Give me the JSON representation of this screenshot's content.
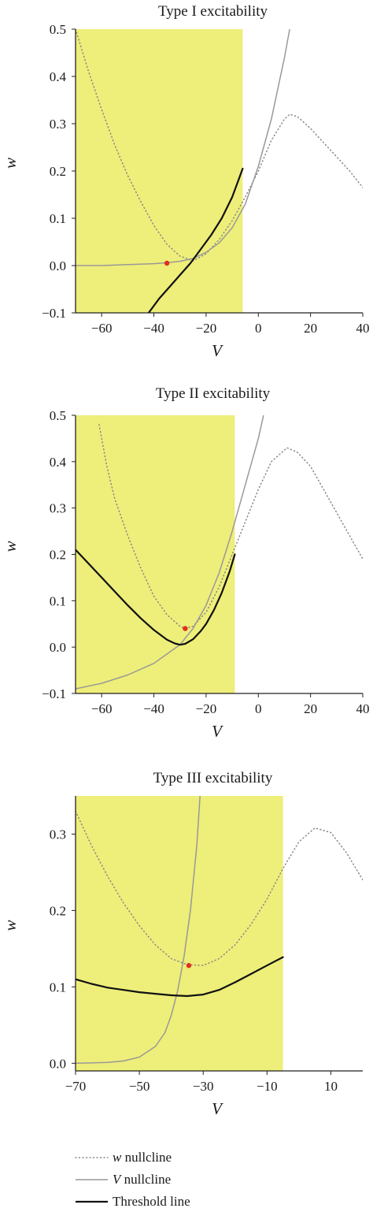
{
  "colors": {
    "fill": "#eeee7a",
    "w_nullcline": "#888888",
    "v_nullcline": "#999999",
    "threshold": "#111111",
    "fixed_point": "#e03020",
    "axis": "#222222"
  },
  "legend": {
    "position": "bottom-left",
    "items": [
      {
        "prefix": "w",
        "suffix": " nullcline",
        "style": "dotted",
        "color": "#888888"
      },
      {
        "prefix": "V",
        "suffix": " nullcline",
        "style": "solid-gray",
        "color": "#999999"
      },
      {
        "prefix": "",
        "suffix": "Threshold line",
        "style": "solid-black",
        "color": "#111111"
      }
    ]
  },
  "chart_data": [
    {
      "type": "line",
      "title": "Type I excitability",
      "xlabel": "V",
      "ylabel": "w",
      "xlim": [
        -70,
        40
      ],
      "ylim": [
        -0.1,
        0.5
      ],
      "xticks": [
        -60,
        -40,
        -20,
        0,
        20,
        40
      ],
      "xtick_labels": [
        "−60",
        "−40",
        "−20",
        "0",
        "20",
        "40"
      ],
      "yticks": [
        -0.1,
        0.0,
        0.1,
        0.2,
        0.3,
        0.4,
        0.5
      ],
      "ytick_labels": [
        "−0.1",
        "0.0",
        "0.1",
        "0.2",
        "0.3",
        "0.4",
        "0.5"
      ],
      "region": {
        "x_min": -70,
        "x_max": -6,
        "y_min": -0.1,
        "y_max": 0.5
      },
      "fixed_point": {
        "x": -35,
        "y": 0.005
      },
      "series": [
        {
          "name": "w nullcline",
          "style": "dotted",
          "x": [
            -70,
            -65,
            -60,
            -55,
            -50,
            -45,
            -40,
            -35,
            -30,
            -25,
            -20,
            -15,
            -10,
            -5,
            0,
            5,
            10,
            12,
            15,
            20,
            25,
            30,
            35,
            40
          ],
          "y": [
            0.5,
            0.41,
            0.33,
            0.255,
            0.19,
            0.135,
            0.085,
            0.045,
            0.02,
            0.01,
            0.025,
            0.055,
            0.095,
            0.145,
            0.2,
            0.265,
            0.31,
            0.32,
            0.315,
            0.29,
            0.26,
            0.23,
            0.2,
            0.165
          ]
        },
        {
          "name": "V nullcline",
          "style": "solid-gray",
          "x": [
            -70,
            -60,
            -50,
            -40,
            -35,
            -30,
            -25,
            -20,
            -15,
            -10,
            -5,
            0,
            5,
            10,
            12
          ],
          "y": [
            0.0,
            0.0,
            0.002,
            0.004,
            0.006,
            0.009,
            0.015,
            0.028,
            0.048,
            0.08,
            0.13,
            0.21,
            0.31,
            0.44,
            0.5
          ]
        },
        {
          "name": "Threshold line",
          "style": "solid-black",
          "x": [
            -42,
            -38,
            -34,
            -30,
            -26,
            -22,
            -18,
            -14,
            -10,
            -6
          ],
          "y": [
            -0.1,
            -0.07,
            -0.045,
            -0.02,
            0.005,
            0.035,
            0.065,
            0.1,
            0.145,
            0.205
          ]
        }
      ]
    },
    {
      "type": "line",
      "title": "Type II excitability",
      "xlabel": "V",
      "ylabel": "w",
      "xlim": [
        -70,
        40
      ],
      "ylim": [
        -0.1,
        0.5
      ],
      "xticks": [
        -60,
        -40,
        -20,
        0,
        20,
        40
      ],
      "xtick_labels": [
        "−60",
        "−40",
        "−20",
        "0",
        "20",
        "40"
      ],
      "yticks": [
        -0.1,
        0.0,
        0.1,
        0.2,
        0.3,
        0.4,
        0.5
      ],
      "ytick_labels": [
        "−0.1",
        "0.0",
        "0.1",
        "0.2",
        "0.3",
        "0.4",
        "0.5"
      ],
      "region": {
        "x_min": -70,
        "x_max": -9,
        "y_min": -0.1,
        "y_max": 0.5
      },
      "fixed_point": {
        "x": -28,
        "y": 0.04
      },
      "series": [
        {
          "name": "w nullcline",
          "style": "dotted",
          "x": [
            -61,
            -60,
            -58,
            -55,
            -50,
            -45,
            -40,
            -35,
            -30,
            -28,
            -25,
            -20,
            -15,
            -10,
            -5,
            0,
            5,
            10,
            11,
            15,
            20,
            25,
            30,
            35,
            40
          ],
          "y": [
            0.48,
            0.45,
            0.39,
            0.32,
            0.24,
            0.17,
            0.11,
            0.07,
            0.045,
            0.04,
            0.045,
            0.075,
            0.13,
            0.2,
            0.27,
            0.34,
            0.4,
            0.425,
            0.43,
            0.42,
            0.39,
            0.34,
            0.29,
            0.24,
            0.19
          ]
        },
        {
          "name": "V nullcline",
          "style": "solid-gray",
          "x": [
            -70,
            -60,
            -50,
            -40,
            -35,
            -30,
            -25,
            -20,
            -15,
            -10,
            -5,
            0,
            2
          ],
          "y": [
            -0.09,
            -0.078,
            -0.06,
            -0.035,
            -0.015,
            0.005,
            0.04,
            0.09,
            0.16,
            0.25,
            0.35,
            0.45,
            0.5
          ]
        },
        {
          "name": "Threshold line",
          "style": "solid-black",
          "x": [
            -70,
            -65,
            -60,
            -55,
            -50,
            -45,
            -40,
            -35,
            -32,
            -30,
            -28,
            -25,
            -22,
            -20,
            -17,
            -14,
            -11,
            -9
          ],
          "y": [
            0.21,
            0.18,
            0.15,
            0.12,
            0.09,
            0.062,
            0.037,
            0.016,
            0.008,
            0.005,
            0.007,
            0.017,
            0.035,
            0.05,
            0.08,
            0.117,
            0.163,
            0.2
          ]
        }
      ]
    },
    {
      "type": "line",
      "title": "Type III excitability",
      "xlabel": "V",
      "ylabel": "w",
      "xlim": [
        -70,
        20
      ],
      "ylim": [
        -0.01,
        0.35
      ],
      "xticks": [
        -70,
        -50,
        -30,
        -10,
        10
      ],
      "xtick_labels": [
        "−70",
        "−50",
        "−30",
        "−10",
        "10"
      ],
      "yticks": [
        0.0,
        0.1,
        0.2,
        0.3
      ],
      "ytick_labels": [
        "0.0",
        "0.1",
        "0.2",
        "0.3"
      ],
      "region": {
        "x_min": -70,
        "x_max": -5,
        "y_min": -0.01,
        "y_max": 0.35
      },
      "fixed_point": {
        "x": -34.5,
        "y": 0.128
      },
      "series": [
        {
          "name": "w nullcline",
          "style": "dotted",
          "x": [
            -70,
            -65,
            -60,
            -55,
            -50,
            -45,
            -40,
            -35,
            -30,
            -25,
            -20,
            -15,
            -10,
            -5,
            0,
            5,
            10,
            15,
            20
          ],
          "y": [
            0.33,
            0.285,
            0.245,
            0.21,
            0.18,
            0.155,
            0.137,
            0.129,
            0.128,
            0.137,
            0.155,
            0.182,
            0.215,
            0.255,
            0.29,
            0.308,
            0.302,
            0.275,
            0.24
          ]
        },
        {
          "name": "V nullcline",
          "style": "solid-gray",
          "x": [
            -70,
            -60,
            -55,
            -50,
            -45,
            -42,
            -40,
            -38,
            -36,
            -34,
            -32,
            -31
          ],
          "y": [
            0.0,
            0.001,
            0.003,
            0.008,
            0.022,
            0.04,
            0.063,
            0.095,
            0.14,
            0.2,
            0.285,
            0.35
          ]
        },
        {
          "name": "Threshold line",
          "style": "solid-black",
          "x": [
            -70,
            -65,
            -60,
            -55,
            -50,
            -45,
            -40,
            -35,
            -30,
            -25,
            -20,
            -15,
            -10,
            -5
          ],
          "y": [
            0.11,
            0.104,
            0.099,
            0.096,
            0.093,
            0.091,
            0.089,
            0.088,
            0.09,
            0.096,
            0.106,
            0.117,
            0.128,
            0.139
          ]
        }
      ]
    }
  ]
}
